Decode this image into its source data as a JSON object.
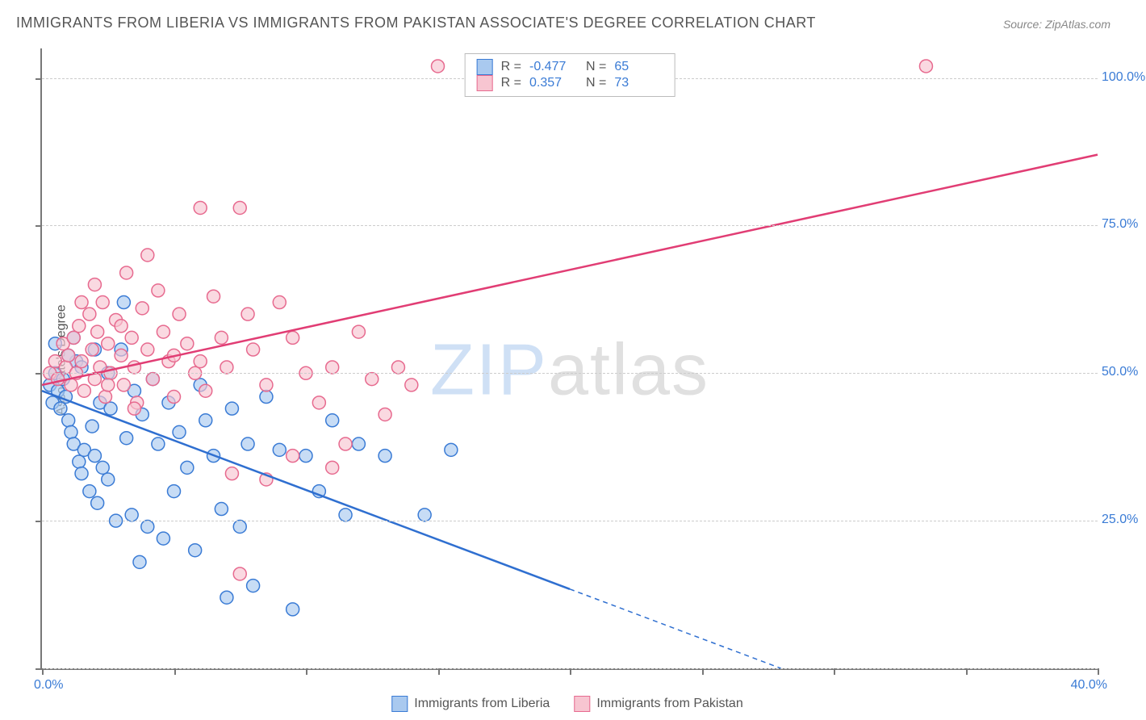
{
  "title": "IMMIGRANTS FROM LIBERIA VS IMMIGRANTS FROM PAKISTAN ASSOCIATE'S DEGREE CORRELATION CHART",
  "source": "Source: ZipAtlas.com",
  "y_axis_label": "Associate's Degree",
  "watermark_head": "ZIP",
  "watermark_tail": "atlas",
  "chart": {
    "type": "scatter",
    "background_color": "#ffffff",
    "axis_color": "#777777",
    "grid_color": "#cccccc",
    "tick_label_color": "#3a7bd5",
    "tick_label_fontsize": 16,
    "xlim": [
      0,
      40
    ],
    "ylim": [
      0,
      105
    ],
    "x_ticks": [
      0,
      5,
      10,
      15,
      20,
      25,
      30,
      35,
      40
    ],
    "x_tick_labels_shown": {
      "0": "0.0%",
      "40": "40.0%"
    },
    "y_ticks": [
      25,
      50,
      75,
      100
    ],
    "y_tick_labels": {
      "25": "25.0%",
      "50": "50.0%",
      "75": "75.0%",
      "100": "100.0%"
    },
    "grid_y": [
      0,
      25,
      50,
      75,
      100
    ],
    "marker_radius": 8,
    "marker_stroke_width": 1.5,
    "line_width": 2.5,
    "series": [
      {
        "name": "Immigrants from Liberia",
        "key": "liberia",
        "color_fill": "#a9c9ef",
        "color_stroke": "#3a7bd5",
        "line_color": "#2f6fd0",
        "R": "-0.477",
        "N": "65",
        "trend": {
          "x1": 0,
          "y1": 47,
          "x2": 28,
          "y2": 0,
          "x_dash_from": 20
        },
        "points": [
          [
            0.3,
            48
          ],
          [
            0.4,
            45
          ],
          [
            0.5,
            50
          ],
          [
            0.6,
            47
          ],
          [
            0.7,
            44
          ],
          [
            0.8,
            49
          ],
          [
            0.9,
            46
          ],
          [
            1.0,
            42
          ],
          [
            1.1,
            40
          ],
          [
            1.2,
            38
          ],
          [
            1.3,
            52
          ],
          [
            1.4,
            35
          ],
          [
            1.5,
            33
          ],
          [
            1.6,
            37
          ],
          [
            1.8,
            30
          ],
          [
            1.9,
            41
          ],
          [
            2.0,
            36
          ],
          [
            2.1,
            28
          ],
          [
            2.2,
            45
          ],
          [
            2.3,
            34
          ],
          [
            2.5,
            32
          ],
          [
            2.6,
            44
          ],
          [
            2.8,
            25
          ],
          [
            3.0,
            54
          ],
          [
            3.1,
            62
          ],
          [
            3.2,
            39
          ],
          [
            3.4,
            26
          ],
          [
            3.5,
            47
          ],
          [
            3.7,
            18
          ],
          [
            3.8,
            43
          ],
          [
            4.0,
            24
          ],
          [
            4.2,
            49
          ],
          [
            4.4,
            38
          ],
          [
            4.6,
            22
          ],
          [
            4.8,
            45
          ],
          [
            5.0,
            30
          ],
          [
            5.2,
            40
          ],
          [
            5.5,
            34
          ],
          [
            5.8,
            20
          ],
          [
            6.0,
            48
          ],
          [
            6.2,
            42
          ],
          [
            6.5,
            36
          ],
          [
            6.8,
            27
          ],
          [
            7.0,
            12
          ],
          [
            7.2,
            44
          ],
          [
            7.5,
            24
          ],
          [
            7.8,
            38
          ],
          [
            8.0,
            14
          ],
          [
            8.5,
            46
          ],
          [
            9.0,
            37
          ],
          [
            9.5,
            10
          ],
          [
            10.0,
            36
          ],
          [
            10.5,
            30
          ],
          [
            11.0,
            42
          ],
          [
            11.5,
            26
          ],
          [
            12.0,
            38
          ],
          [
            13.0,
            36
          ],
          [
            14.5,
            26
          ],
          [
            15.5,
            37
          ],
          [
            0.5,
            55
          ],
          [
            1.0,
            53
          ],
          [
            1.2,
            56
          ],
          [
            1.5,
            51
          ],
          [
            2.0,
            54
          ],
          [
            2.5,
            50
          ]
        ]
      },
      {
        "name": "Immigrants from Pakistan",
        "key": "pakistan",
        "color_fill": "#f7c5d1",
        "color_stroke": "#e76a8f",
        "line_color": "#e13d74",
        "R": "0.357",
        "N": "73",
        "trend": {
          "x1": 0,
          "y1": 48,
          "x2": 40,
          "y2": 87,
          "x_dash_from": 40
        },
        "points": [
          [
            0.3,
            50
          ],
          [
            0.5,
            52
          ],
          [
            0.6,
            49
          ],
          [
            0.8,
            55
          ],
          [
            0.9,
            51
          ],
          [
            1.0,
            53
          ],
          [
            1.1,
            48
          ],
          [
            1.2,
            56
          ],
          [
            1.3,
            50
          ],
          [
            1.4,
            58
          ],
          [
            1.5,
            52
          ],
          [
            1.6,
            47
          ],
          [
            1.8,
            60
          ],
          [
            1.9,
            54
          ],
          [
            2.0,
            49
          ],
          [
            2.1,
            57
          ],
          [
            2.2,
            51
          ],
          [
            2.3,
            62
          ],
          [
            2.4,
            46
          ],
          [
            2.5,
            55
          ],
          [
            2.6,
            50
          ],
          [
            2.8,
            59
          ],
          [
            3.0,
            53
          ],
          [
            3.1,
            48
          ],
          [
            3.2,
            67
          ],
          [
            3.4,
            56
          ],
          [
            3.5,
            51
          ],
          [
            3.6,
            45
          ],
          [
            3.8,
            61
          ],
          [
            4.0,
            54
          ],
          [
            4.2,
            49
          ],
          [
            4.4,
            64
          ],
          [
            4.6,
            57
          ],
          [
            4.8,
            52
          ],
          [
            5.0,
            46
          ],
          [
            5.2,
            60
          ],
          [
            5.5,
            55
          ],
          [
            5.8,
            50
          ],
          [
            6.0,
            78
          ],
          [
            6.2,
            47
          ],
          [
            6.5,
            63
          ],
          [
            6.8,
            56
          ],
          [
            7.0,
            51
          ],
          [
            7.2,
            33
          ],
          [
            7.5,
            78
          ],
          [
            7.8,
            60
          ],
          [
            8.0,
            54
          ],
          [
            8.5,
            48
          ],
          [
            9.0,
            62
          ],
          [
            9.5,
            56
          ],
          [
            10.0,
            50
          ],
          [
            10.5,
            45
          ],
          [
            11.0,
            51
          ],
          [
            11.5,
            38
          ],
          [
            12.0,
            57
          ],
          [
            12.5,
            49
          ],
          [
            13.0,
            43
          ],
          [
            13.5,
            51
          ],
          [
            14.0,
            48
          ],
          [
            15.0,
            102
          ],
          [
            33.5,
            102
          ],
          [
            4.0,
            70
          ],
          [
            2.0,
            65
          ],
          [
            1.5,
            62
          ],
          [
            3.0,
            58
          ],
          [
            5.0,
            53
          ],
          [
            6.0,
            52
          ],
          [
            2.5,
            48
          ],
          [
            3.5,
            44
          ],
          [
            7.5,
            16
          ],
          [
            8.5,
            32
          ],
          [
            9.5,
            36
          ],
          [
            11.0,
            34
          ]
        ]
      }
    ],
    "legend_bottom": [
      {
        "label": "Immigrants from Liberia",
        "fill": "#a9c9ef",
        "stroke": "#3a7bd5"
      },
      {
        "label": "Immigrants from Pakistan",
        "fill": "#f7c5d1",
        "stroke": "#e76a8f"
      }
    ]
  }
}
